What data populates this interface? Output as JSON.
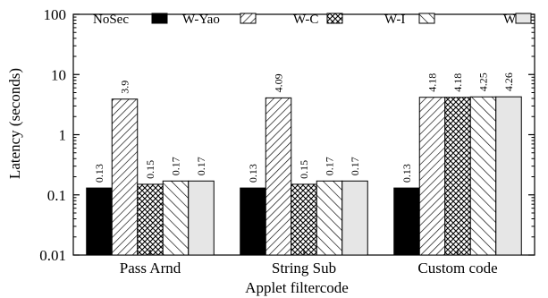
{
  "chart_data": {
    "type": "bar",
    "scale": "log",
    "ylim": [
      0.01,
      100
    ],
    "yticks": [
      {
        "value": 100,
        "label": "100"
      },
      {
        "value": 10,
        "label": "10"
      },
      {
        "value": 1,
        "label": "1"
      },
      {
        "value": 0.1,
        "label": "0.1"
      },
      {
        "value": 0.01,
        "label": "0.01"
      }
    ],
    "ylabel": "Latency (seconds)",
    "xlabel": "Applet filtercode",
    "categories": [
      "Pass Arnd",
      "String Sub",
      "Custom code"
    ],
    "legend_position": "top",
    "series": [
      {
        "name": "NoSec",
        "pattern": "solid-black",
        "values": [
          0.13,
          0.13,
          0.13
        ],
        "labels": [
          "0.13",
          "0.13",
          "0.13"
        ]
      },
      {
        "name": "W-Yao",
        "pattern": "diagonal-dense",
        "values": [
          3.9,
          4.09,
          4.18
        ],
        "labels": [
          "3.9",
          "4.09",
          "4.18"
        ]
      },
      {
        "name": "W-C",
        "pattern": "crosshatch",
        "values": [
          0.15,
          0.15,
          4.18
        ],
        "labels": [
          "0.15",
          "0.15",
          "4.18"
        ]
      },
      {
        "name": "W-I",
        "pattern": "diagonal-sparse",
        "values": [
          0.17,
          0.17,
          4.25
        ],
        "labels": [
          "0.17",
          "0.17",
          "4.25"
        ]
      },
      {
        "name": "W",
        "pattern": "light-gray",
        "values": [
          0.17,
          0.17,
          4.26
        ],
        "labels": [
          "0.17",
          "0.17",
          "4.26"
        ]
      }
    ]
  }
}
